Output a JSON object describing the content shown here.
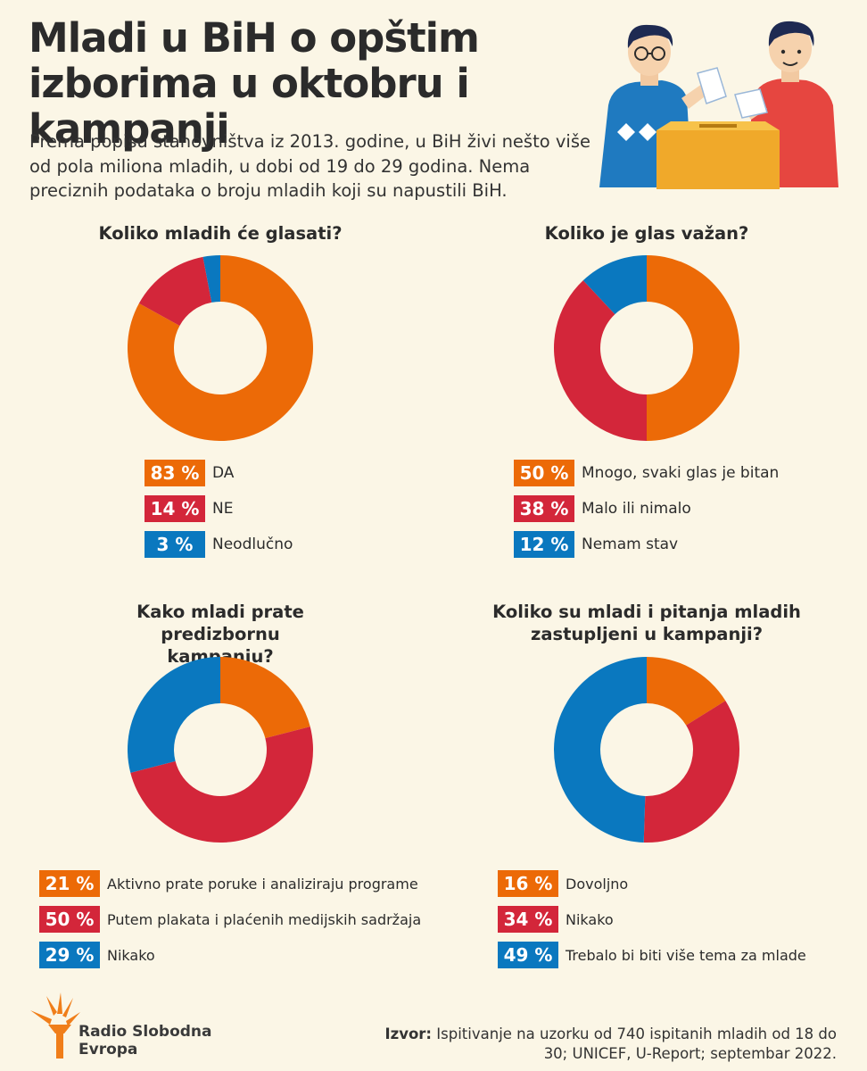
{
  "title": "Mladi u BiH o opštim izborima u oktobru i kampanji",
  "intro": "Prema popisu stanovništva iz 2013. godine, u BiH živi nešto više od pola miliona mladih, u dobi od 19 do 29 godina. Nema preciznih podataka o broju mladih koji su napustili BiH.",
  "colors": {
    "orange": "#ec6a07",
    "red": "#d3263a",
    "blue": "#0a78bf",
    "background": "#fbf6e6"
  },
  "chart_data": [
    {
      "type": "pie",
      "title": "Koliko mladih će glasati?",
      "slices": [
        {
          "label": "DA",
          "value": 83,
          "display": "83 %",
          "color": "#ec6a07"
        },
        {
          "label": "NE",
          "value": 14,
          "display": "14 %",
          "color": "#d3263a"
        },
        {
          "label": "Neodlučno",
          "value": 3,
          "display": "3 %",
          "color": "#0a78bf"
        }
      ]
    },
    {
      "type": "pie",
      "title": "Koliko je glas važan?",
      "slices": [
        {
          "label": "Mnogo, svaki glas je bitan",
          "value": 50,
          "display": "50 %",
          "color": "#ec6a07"
        },
        {
          "label": "Malo ili nimalo",
          "value": 38,
          "display": "38 %",
          "color": "#d3263a"
        },
        {
          "label": "Nemam stav",
          "value": 12,
          "display": "12 %",
          "color": "#0a78bf"
        }
      ]
    },
    {
      "type": "pie",
      "title": "Kako mladi prate predizbornu kampanju?",
      "slices": [
        {
          "label": "Aktivno prate poruke i analiziraju programe",
          "value": 21,
          "display": "21 %",
          "color": "#ec6a07"
        },
        {
          "label": "Putem plakata i plaćenih medijskih sadržaja",
          "value": 50,
          "display": "50 %",
          "color": "#d3263a"
        },
        {
          "label": "Nikako",
          "value": 29,
          "display": "29 %",
          "color": "#0a78bf"
        }
      ]
    },
    {
      "type": "pie",
      "title": "Koliko su mladi i pitanja mladih zastupljeni u kampanji?",
      "slices": [
        {
          "label": "Dovoljno",
          "value": 16,
          "display": "16 %",
          "color": "#ec6a07"
        },
        {
          "label": "Nikako",
          "value": 34,
          "display": "34 %",
          "color": "#d3263a"
        },
        {
          "label": "Trebalo bi biti više tema za mlade",
          "value": 49,
          "display": "49 %",
          "color": "#0a78bf"
        }
      ]
    }
  ],
  "logo": {
    "line1": "Radio Slobodna",
    "line2": "Evropa"
  },
  "source": {
    "label": "Izvor:",
    "text": "Ispitivanje na uzorku od 740 ispitanih mladih od 18 do 30; UNICEF, U-Report; septembar 2022."
  }
}
